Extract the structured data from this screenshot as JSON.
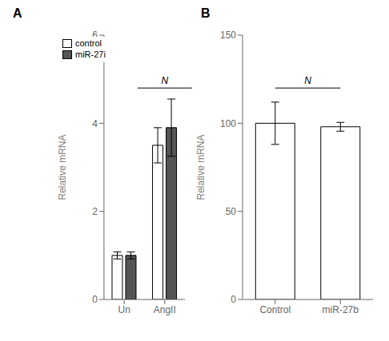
{
  "chart_data": [
    {
      "type": "bar",
      "title": "A",
      "categories": [
        "Un",
        "AngII"
      ],
      "series": [
        {
          "name": "control",
          "color": "#ffffff",
          "values": [
            1.0,
            3.5
          ],
          "errors": [
            0.08,
            0.4
          ]
        },
        {
          "name": "miR-27i",
          "color": "#555555",
          "values": [
            1.0,
            3.9
          ],
          "errors": [
            0.08,
            0.65
          ]
        }
      ],
      "ylabel": "Relative mRNA",
      "ylim": [
        0,
        6
      ],
      "yticks": [
        0,
        2,
        4,
        6
      ],
      "grid": false,
      "legend": "upper left",
      "annotations": [
        {
          "text": "N",
          "categories": [
            "AngII"
          ]
        }
      ]
    },
    {
      "type": "bar",
      "title": "B",
      "categories": [
        "Control",
        "miR-27b"
      ],
      "values": [
        100.0,
        98.0
      ],
      "errors": [
        12.0,
        2.5
      ],
      "color": "#ffffff",
      "ylabel": "Relative mRNA",
      "ylim": [
        0,
        150
      ],
      "yticks": [
        0,
        50,
        100,
        150
      ],
      "grid": false,
      "annotations": [
        {
          "text": "N",
          "categories": [
            "Control",
            "miR-27b"
          ]
        }
      ]
    }
  ]
}
